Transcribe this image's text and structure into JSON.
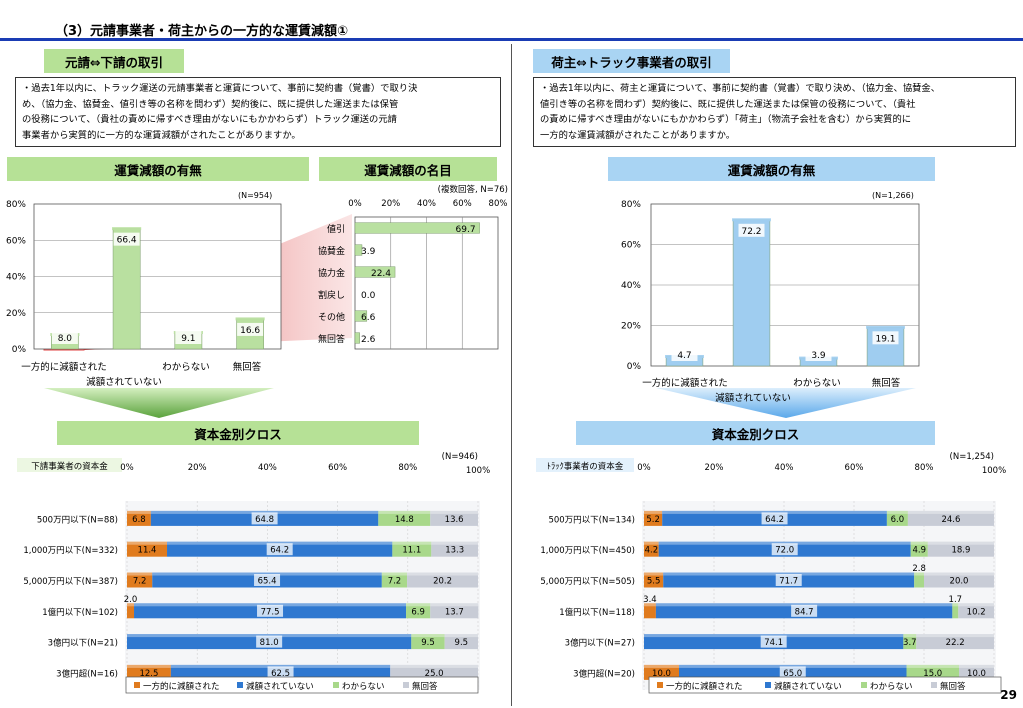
{
  "page_title": "（3）元請事業者・荷主からの一方的な運賃減額①",
  "page_number": "29",
  "left": {
    "header": "元請⇔下請の取引",
    "description": [
      "・過去1年以内に、トラック運送の元請事業者と運賃について、事前に契約書（覚書）で取り決",
      "め、（協力金、協賛金、値引き等の名称を問わず）契約後に、既に提供した運送または保管",
      "の役務について、（貴社の責めに帰すべき理由がないにもかかわらず）トラック運送の元請",
      "事業者から実質的に一方的な運賃減額がされたことがありますか。"
    ],
    "section1_title": "運賃減額の有無",
    "section2_title": "運賃減額の名目",
    "cross_title": "資本金別クロス",
    "cross_axis_label": "下請事業者の資本金"
  },
  "right": {
    "header": "荷主⇔トラック事業者の取引",
    "description": [
      "・過去1年以内に、荷主と運賃について、事前に契約書（覚書）で取り決め、（協力金、協賛金、",
      "値引き等の名称を問わず）契約後に、既に提供した運送または保管の役務について、（貴社",
      "の責めに帰すべき理由がないにもかかわらず）「荷主」（物流子会社を含む）から実質的に",
      "一方的な運賃減額がされたことがありますか。"
    ],
    "section1_title": "運賃減額の有無",
    "cross_title": "資本金別クロス",
    "cross_axis_label": "ﾄﾗｯｸ事業者の資本金"
  },
  "chart_data": [
    {
      "id": "left_presence",
      "type": "bar",
      "n_label": "(N=954)",
      "categories": [
        "一方的に減額された",
        "減額されていない",
        "わからない",
        "無回答"
      ],
      "values": [
        8.0,
        66.4,
        9.1,
        16.6
      ],
      "value_labels": [
        "8.0",
        "66.4",
        "9.1",
        "16.6"
      ],
      "yticks": [
        "0%",
        "20%",
        "40%",
        "60%",
        "80%"
      ],
      "ylim": [
        0,
        80
      ],
      "color": "#b9e0a0"
    },
    {
      "id": "left_names",
      "type": "bar",
      "orientation": "horizontal",
      "n_label": "(複数回答, N=76)",
      "categories": [
        "値引",
        "協賛金",
        "協力金",
        "割戻し",
        "その他",
        "無回答"
      ],
      "values": [
        69.7,
        3.9,
        22.4,
        0.0,
        6.6,
        2.6
      ],
      "value_labels": [
        "69.7",
        "3.9",
        "22.4",
        "0.0",
        "6.6",
        "2.6"
      ],
      "xticks": [
        "0%",
        "20%",
        "40%",
        "60%",
        "80%"
      ],
      "xlim": [
        0,
        80
      ],
      "color": "#b9e0a0"
    },
    {
      "id": "right_presence",
      "type": "bar",
      "n_label": "(N=1,266)",
      "categories": [
        "一方的に減額された",
        "減額されていない",
        "わからない",
        "無回答"
      ],
      "values": [
        4.7,
        72.2,
        3.9,
        19.1
      ],
      "value_labels": [
        "4.7",
        "72.2",
        "3.9",
        "19.1"
      ],
      "yticks": [
        "0%",
        "20%",
        "40%",
        "60%",
        "80%"
      ],
      "ylim": [
        0,
        80
      ],
      "color": "#9fcdf0"
    },
    {
      "id": "left_cross",
      "type": "bar",
      "orientation": "horizontal",
      "stacked": true,
      "n_label": "(N=946)",
      "xticks": [
        "0%",
        "20%",
        "40%",
        "60%",
        "80%",
        "100%"
      ],
      "categories": [
        "500万円以下(N=88)",
        "1,000万円以下(N=332)",
        "5,000万円以下(N=387)",
        "1億円以下(N=102)",
        "3億円以下(N=21)",
        "3億円超(N=16)"
      ],
      "series": [
        {
          "name": "一方的に減額された",
          "color": "#e07b1e",
          "values": [
            6.8,
            11.4,
            7.2,
            2.0,
            0.0,
            12.5
          ],
          "labels": [
            "6.8",
            "11.4",
            "7.2",
            "2.0",
            "",
            "12.5"
          ]
        },
        {
          "name": "減額されていない",
          "color": "#2f78d0",
          "values": [
            64.8,
            64.2,
            65.4,
            77.5,
            81.0,
            62.5
          ],
          "labels": [
            "64.8",
            "64.2",
            "65.4",
            "77.5",
            "81.0",
            "62.5"
          ]
        },
        {
          "name": "わからない",
          "color": "#a8d88a",
          "values": [
            14.8,
            11.1,
            7.2,
            6.9,
            9.5,
            0.0
          ],
          "labels": [
            "14.8",
            "11.1",
            "7.2",
            "6.9",
            "9.5",
            ""
          ]
        },
        {
          "name": "無回答",
          "color": "#c8ccd6",
          "values": [
            13.6,
            13.3,
            20.2,
            13.7,
            9.5,
            25.0
          ],
          "labels": [
            "13.6",
            "13.3",
            "20.2",
            "13.7",
            "9.5",
            "25.0"
          ]
        }
      ],
      "outside_labels": [
        {
          "row": 3,
          "series": 0,
          "text": "2.0"
        }
      ]
    },
    {
      "id": "right_cross",
      "type": "bar",
      "orientation": "horizontal",
      "stacked": true,
      "n_label": "(N=1,254)",
      "xticks": [
        "0%",
        "20%",
        "40%",
        "60%",
        "80%",
        "100%"
      ],
      "categories": [
        "500万円以下(N=134)",
        "1,000万円以下(N=450)",
        "5,000万円以下(N=505)",
        "1億円以下(N=118)",
        "3億円以下(N=27)",
        "3億円超(N=20)"
      ],
      "series": [
        {
          "name": "一方的に減額された",
          "color": "#e07b1e",
          "values": [
            5.2,
            4.2,
            5.5,
            3.4,
            0.0,
            10.0
          ],
          "labels": [
            "5.2",
            "4.2",
            "5.5",
            "3.4",
            "",
            "10.0"
          ]
        },
        {
          "name": "減額されていない",
          "color": "#2f78d0",
          "values": [
            64.2,
            72.0,
            71.7,
            84.7,
            74.1,
            65.0
          ],
          "labels": [
            "64.2",
            "72.0",
            "71.7",
            "84.7",
            "74.1",
            "65.0"
          ]
        },
        {
          "name": "わからない",
          "color": "#a8d88a",
          "values": [
            6.0,
            4.9,
            2.8,
            1.7,
            3.7,
            15.0
          ],
          "labels": [
            "6.0",
            "4.9",
            "2.8",
            "1.7",
            "3.7",
            "15.0"
          ]
        },
        {
          "name": "無回答",
          "color": "#c8ccd6",
          "values": [
            24.6,
            18.9,
            20.0,
            10.2,
            22.2,
            10.0
          ],
          "labels": [
            "24.6",
            "18.9",
            "20.0",
            "10.2",
            "22.2",
            "10.0"
          ]
        }
      ],
      "outside_labels": [
        {
          "row": 2,
          "series": 2,
          "text": "2.8"
        },
        {
          "row": 3,
          "series": 0,
          "text": "3.4"
        },
        {
          "row": 3,
          "series": 2,
          "text": "1.7"
        }
      ]
    }
  ]
}
